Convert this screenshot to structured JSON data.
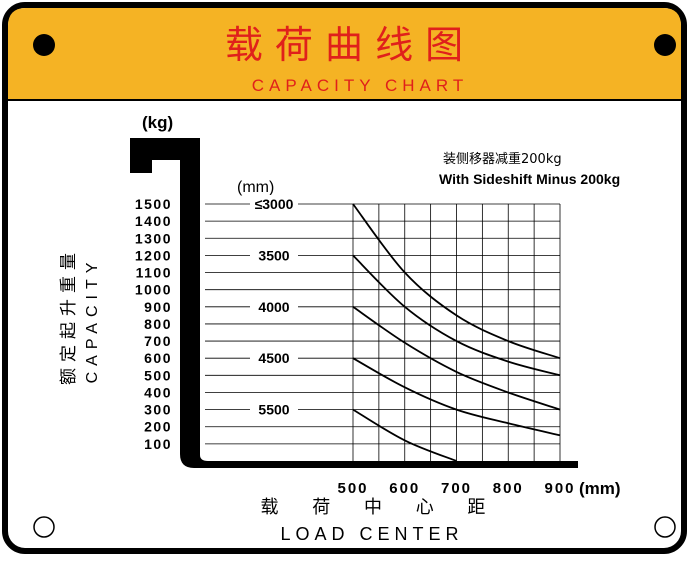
{
  "plate": {
    "title_cn": "载 荷 曲 线 图",
    "title_en": "CAPACITY CHART",
    "note_cn": "装侧移器减重200kg",
    "note_en": "With Sideshift Minus 200kg",
    "side_label_cn": "额定起升重量",
    "side_label_en": "CAPACITY",
    "bottom_label_cn": "载 荷 中 心 距",
    "bottom_label_en": "LOAD CENTER",
    "colors": {
      "header": "#f5b324",
      "title_red": "#e0201b",
      "ink": "#000000",
      "panel": "#ffffff"
    }
  },
  "chart_data": {
    "type": "line",
    "title": "CAPACITY CHART",
    "xlabel": "LOAD CENTER",
    "ylabel": "CAPACITY",
    "x_unit": "(mm)",
    "y_unit": "(kg)",
    "height_unit": "(mm)",
    "x": [
      500,
      600,
      700,
      800,
      900
    ],
    "x_tick_labels": [
      "500",
      "600",
      "700",
      "800",
      "900"
    ],
    "xlim": [
      500,
      900
    ],
    "ylim": [
      0,
      1500
    ],
    "y_ticks": [
      100,
      200,
      300,
      400,
      500,
      600,
      700,
      800,
      900,
      1000,
      1100,
      1200,
      1300,
      1400,
      1500
    ],
    "y_tick_labels": [
      "100",
      "200",
      "300",
      "400",
      "500",
      "600",
      "700",
      "800",
      "900",
      "1000",
      "1100",
      "1200",
      "1300",
      "1400",
      "1500"
    ],
    "grid": true,
    "series": [
      {
        "name": "≤3000",
        "values": [
          1500,
          1100,
          850,
          700,
          600
        ]
      },
      {
        "name": "3500",
        "values": [
          1200,
          900,
          700,
          580,
          500
        ]
      },
      {
        "name": "4000",
        "values": [
          900,
          690,
          520,
          400,
          300
        ]
      },
      {
        "name": "4500",
        "values": [
          600,
          430,
          300,
          220,
          150
        ]
      },
      {
        "name": "5500",
        "values": [
          300,
          120,
          0,
          null,
          null
        ]
      }
    ]
  }
}
